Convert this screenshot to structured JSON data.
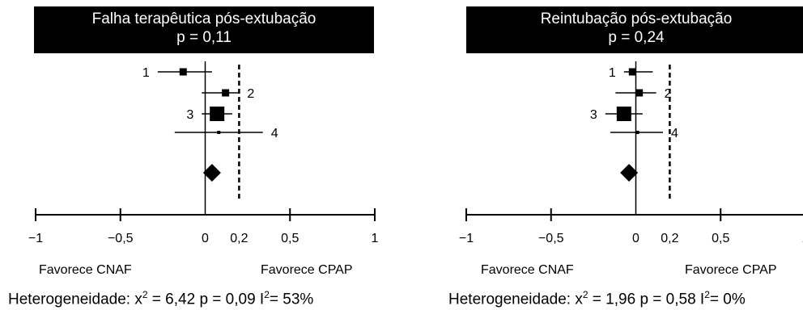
{
  "chart_data": [
    {
      "type": "forest",
      "title": "Falha terapêutica pós-extubação",
      "subtitle": "p = 0,11",
      "xlim": [
        -1,
        1
      ],
      "ticks": [
        {
          "value": -1,
          "label": "−1"
        },
        {
          "value": -0.5,
          "label": "−0,5"
        },
        {
          "value": 0,
          "label": "0"
        },
        {
          "value": 0.2,
          "label": "0,2"
        },
        {
          "value": 0.5,
          "label": "0,5"
        },
        {
          "value": 1,
          "label": "1"
        }
      ],
      "reference_line": 0,
      "dashed_line": 0.2,
      "studies": [
        {
          "label": "1",
          "estimate": -0.13,
          "ci_low": -0.28,
          "ci_high": 0.04,
          "weight": 2,
          "label_side": "left"
        },
        {
          "label": "2",
          "estimate": 0.12,
          "ci_low": -0.02,
          "ci_high": 0.2,
          "weight": 2,
          "label_side": "right"
        },
        {
          "label": "3",
          "estimate": 0.07,
          "ci_low": -0.02,
          "ci_high": 0.16,
          "weight": 4,
          "label_side": "left"
        },
        {
          "label": "4",
          "estimate": 0.08,
          "ci_low": -0.18,
          "ci_high": 0.34,
          "weight": 1,
          "label_side": "right"
        }
      ],
      "pooled": {
        "estimate": 0.04
      },
      "favors_left": "Favorece CNAF",
      "favors_right": "Favorece CPAP",
      "heterogeneity": {
        "prefix": "Heterogeneidade: x",
        "chi": " = 6,42 p = 0,09 I",
        "i2": "= 53%"
      }
    },
    {
      "type": "forest",
      "title": "Reintubação pós-extubação",
      "subtitle": "p = 0,24",
      "xlim": [
        -1,
        1
      ],
      "ticks": [
        {
          "value": -1,
          "label": "−1"
        },
        {
          "value": -0.5,
          "label": "−0,5"
        },
        {
          "value": 0,
          "label": "0"
        },
        {
          "value": 0.2,
          "label": "0,2"
        },
        {
          "value": 0.5,
          "label": "0,5"
        },
        {
          "value": 1,
          "label": "1"
        }
      ],
      "reference_line": 0,
      "dashed_line": 0.2,
      "studies": [
        {
          "label": "1",
          "estimate": -0.02,
          "ci_low": -0.07,
          "ci_high": 0.1,
          "weight": 2,
          "label_side": "left"
        },
        {
          "label": "2",
          "estimate": 0.02,
          "ci_low": -0.12,
          "ci_high": 0.12,
          "weight": 2,
          "label_side": "right"
        },
        {
          "label": "3",
          "estimate": -0.07,
          "ci_low": -0.18,
          "ci_high": 0.04,
          "weight": 4,
          "label_side": "left"
        },
        {
          "label": "4",
          "estimate": 0.01,
          "ci_low": -0.15,
          "ci_high": 0.16,
          "weight": 1,
          "label_side": "right"
        }
      ],
      "pooled": {
        "estimate": -0.04
      },
      "favors_left": "Favorece CNAF",
      "favors_right": "Favorece CPAP",
      "heterogeneity": {
        "prefix": "Heterogeneidade: x",
        "chi": " = 1,96 p = 0,58 I",
        "i2": "= 0%"
      }
    }
  ],
  "superscripts": {
    "two": "2"
  }
}
